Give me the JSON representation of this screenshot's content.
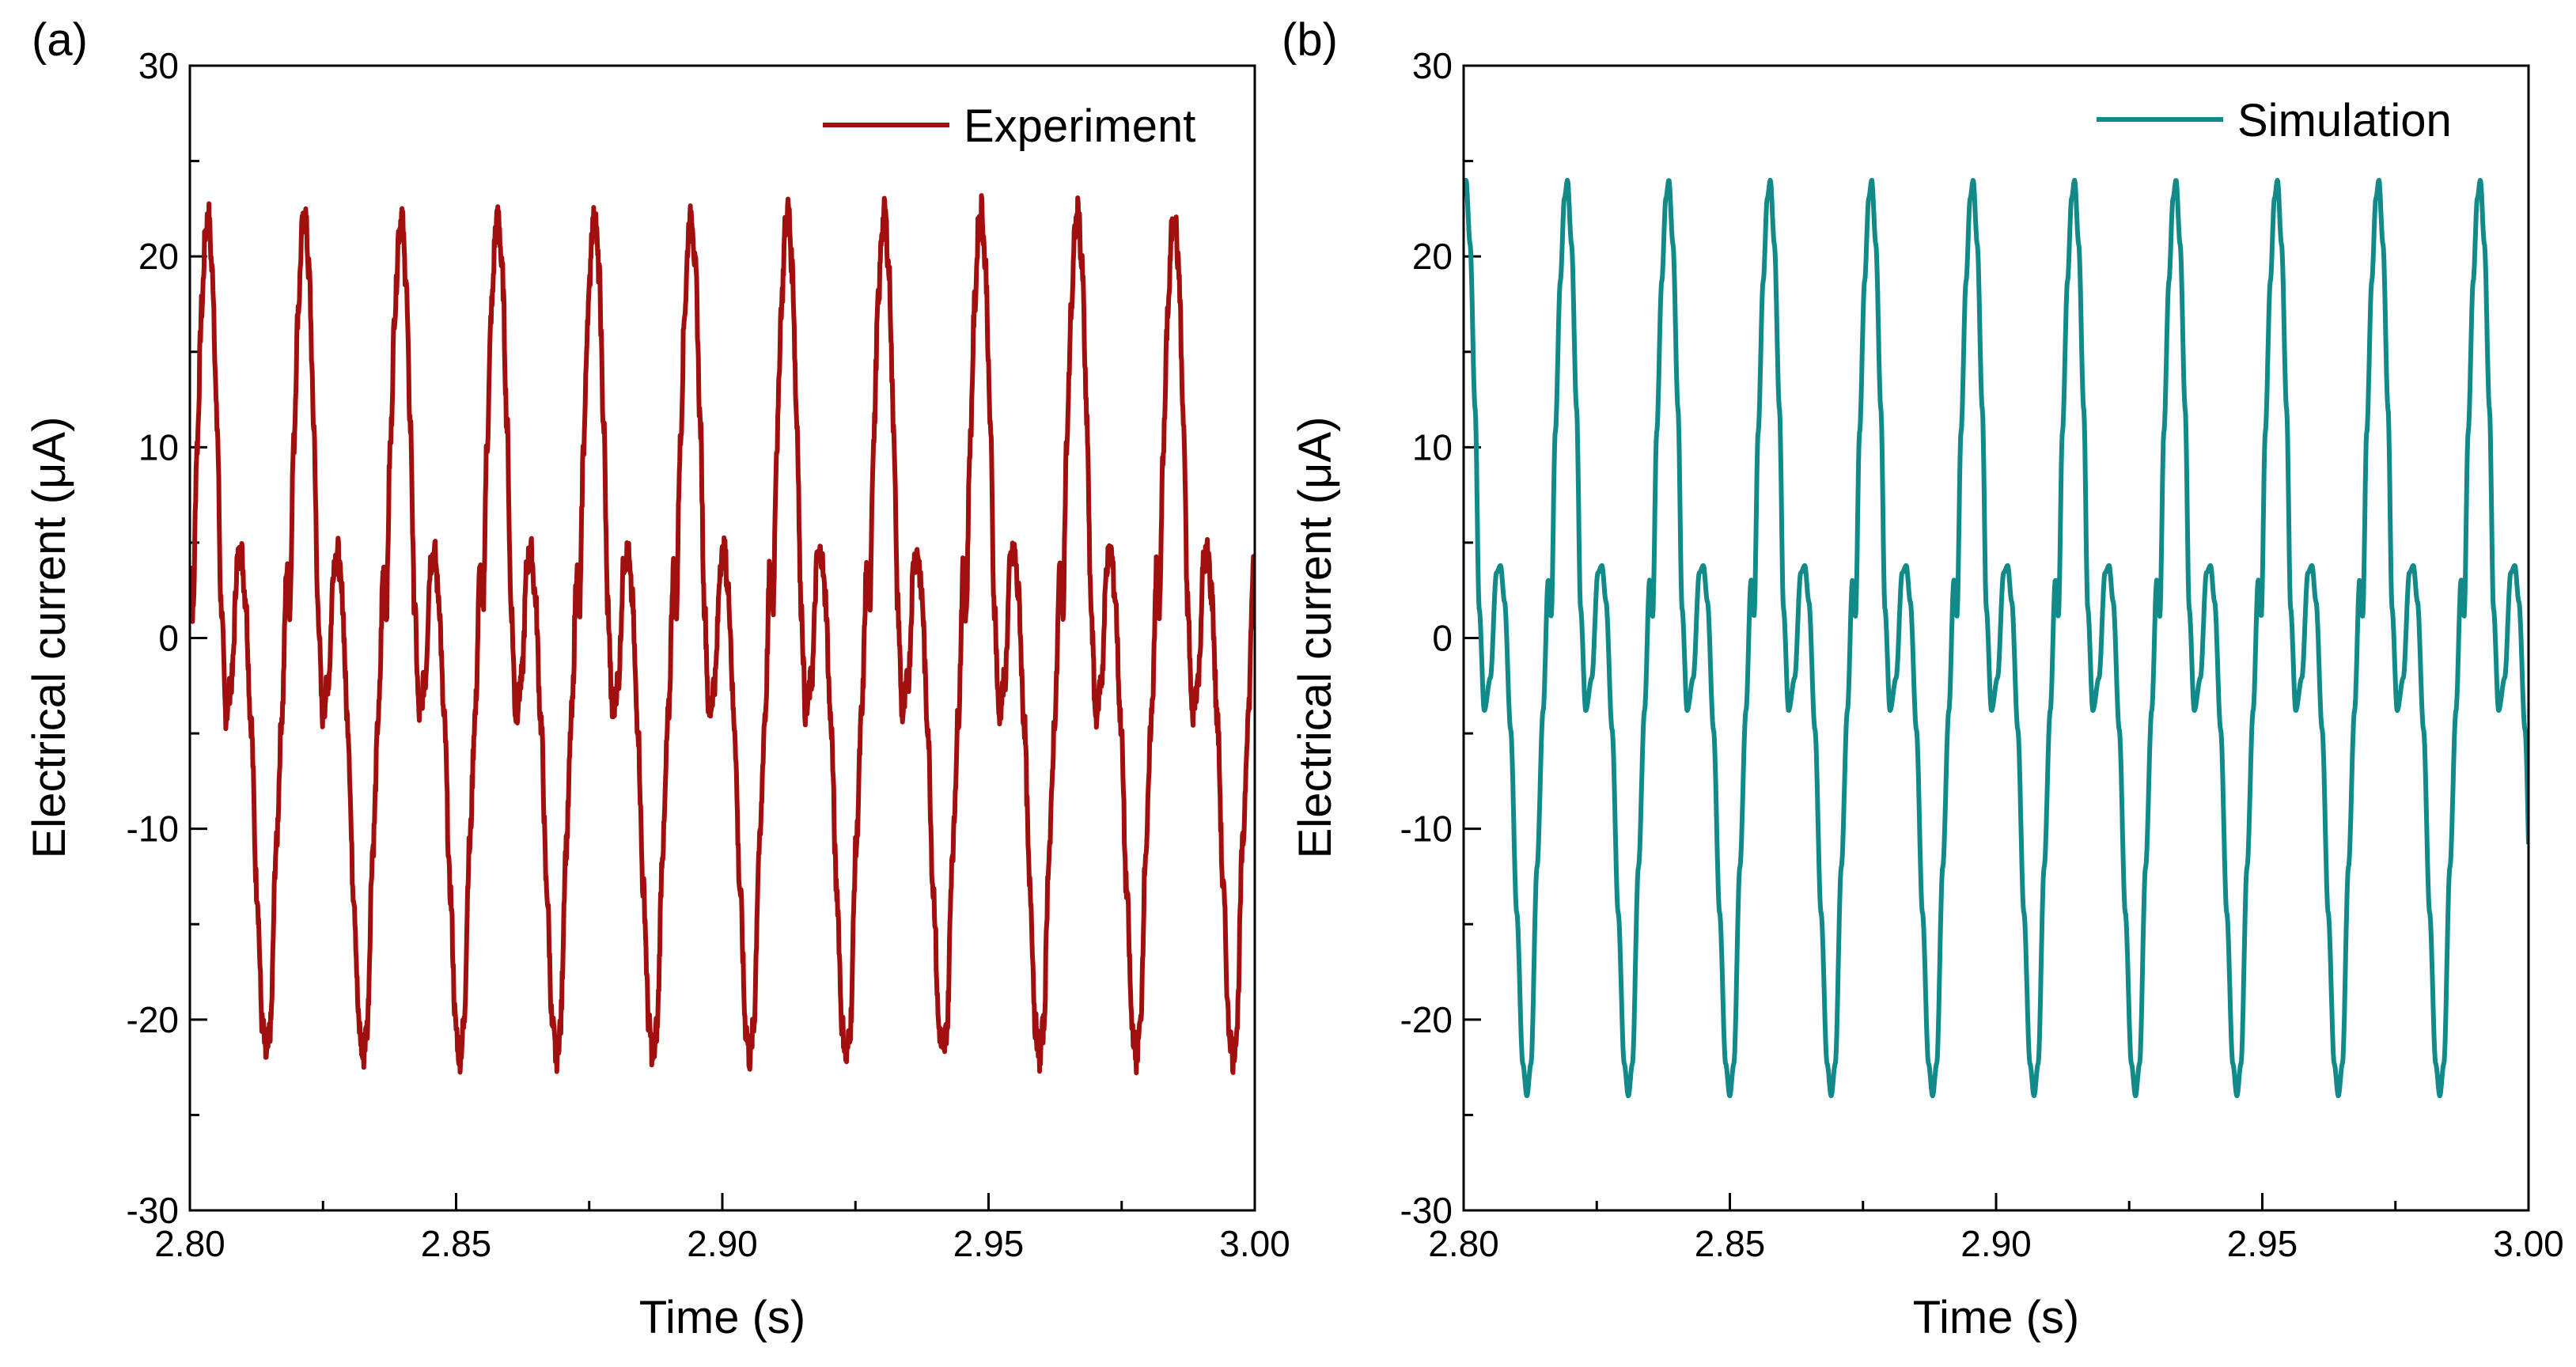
{
  "chart_data": [
    {
      "type": "line",
      "panel_label": "(a)",
      "xlabel": "Time (s)",
      "ylabel": "Electrical current (μA)",
      "xlim": [
        2.8,
        3.0
      ],
      "ylim": [
        -30,
        30
      ],
      "xticks": [
        "2.80",
        "2.85",
        "2.90",
        "2.95",
        "3.00"
      ],
      "yticks": [
        "-30",
        "-20",
        "-10",
        "0",
        "10",
        "20",
        "30"
      ],
      "grid": false,
      "legend_position": "top-right",
      "series": [
        {
          "name": "Experiment",
          "color": "#a10f0f",
          "period_s": 0.01815,
          "first_peak_s": 2.8035,
          "peak_values": [
            22.2,
            22.3,
            22.2,
            22.2,
            22.3,
            22.3,
            22.5,
            22.4,
            22.6,
            22.4,
            22.3
          ],
          "trough_value": -22.0,
          "secondary_hump_value": 4.5,
          "inter_dip_value": -4.0,
          "noisy": true
        }
      ]
    },
    {
      "type": "line",
      "panel_label": "(b)",
      "xlabel": "Time (s)",
      "ylabel": "Electrical current  (μA)",
      "xlim": [
        2.8,
        3.0
      ],
      "ylim": [
        -30,
        30
      ],
      "xticks": [
        "2.80",
        "2.85",
        "2.90",
        "2.95",
        "3.00"
      ],
      "yticks": [
        "-30",
        "-20",
        "-10",
        "0",
        "10",
        "20",
        "30"
      ],
      "grid": false,
      "legend_position": "top-right",
      "series": [
        {
          "name": "Simulation",
          "color": "#138a8a",
          "period_s": 0.01905,
          "first_peak_s": 2.8195,
          "peak_value": 24.0,
          "trough_value": -24.0,
          "secondary_hump_value": 3.8,
          "inter_dip_value": -3.8,
          "noisy": false
        }
      ]
    }
  ]
}
